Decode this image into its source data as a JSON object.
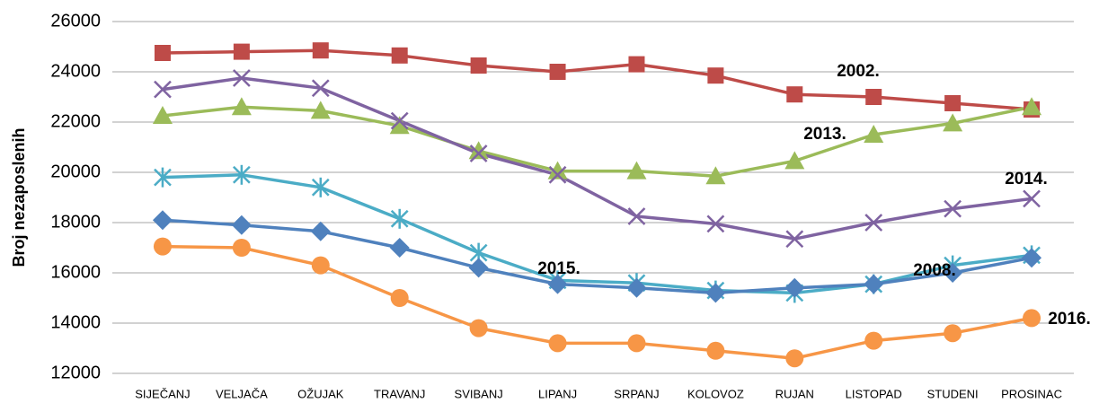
{
  "chart_data": {
    "type": "line",
    "y_label": "Broj nezaposlenih",
    "categories": [
      "SIJEČANJ",
      "VELJAČA",
      "OŽUJAK",
      "TRAVANJ",
      "SVIBANJ",
      "LIPANJ",
      "SRPANJ",
      "KOLOVOZ",
      "RUJAN",
      "LISTOPAD",
      "STUDENI",
      "PROSINAC"
    ],
    "series": [
      {
        "name": "2002.",
        "color": "#be4b48",
        "marker": "square",
        "values": [
          24750,
          24800,
          24850,
          24650,
          24250,
          24000,
          24300,
          23850,
          23100,
          23000,
          22750,
          22500
        ]
      },
      {
        "name": "2013.",
        "color": "#9bbb59",
        "marker": "triangle",
        "values": [
          22250,
          22600,
          22450,
          21850,
          20850,
          20050,
          20050,
          19850,
          20450,
          21500,
          21950,
          22600
        ]
      },
      {
        "name": "2014.",
        "color": "#7f63a1",
        "marker": "x",
        "values": [
          23300,
          23750,
          23350,
          22050,
          20750,
          19900,
          18250,
          17950,
          17350,
          18000,
          18550,
          18950
        ]
      },
      {
        "name": "2015.",
        "color": "#4bacc6",
        "marker": "star",
        "values": [
          19800,
          19900,
          19400,
          18150,
          16800,
          15700,
          15600,
          15300,
          15200,
          15550,
          16300,
          16700
        ]
      },
      {
        "name": "2008.",
        "color": "#4f81bd",
        "marker": "diamond",
        "values": [
          18100,
          17900,
          17650,
          17000,
          16200,
          15550,
          15400,
          15200,
          15400,
          15550,
          16000,
          16600
        ]
      },
      {
        "name": "2016.",
        "color": "#f79646",
        "marker": "circle",
        "values": [
          17050,
          17000,
          16300,
          15000,
          13800,
          13200,
          13200,
          12900,
          12600,
          13300,
          13600,
          14200
        ]
      }
    ],
    "ylim": [
      12000,
      26000
    ],
    "yticks": [
      12000,
      14000,
      16000,
      18000,
      20000,
      22000,
      24000,
      26000
    ],
    "grid": true
  }
}
